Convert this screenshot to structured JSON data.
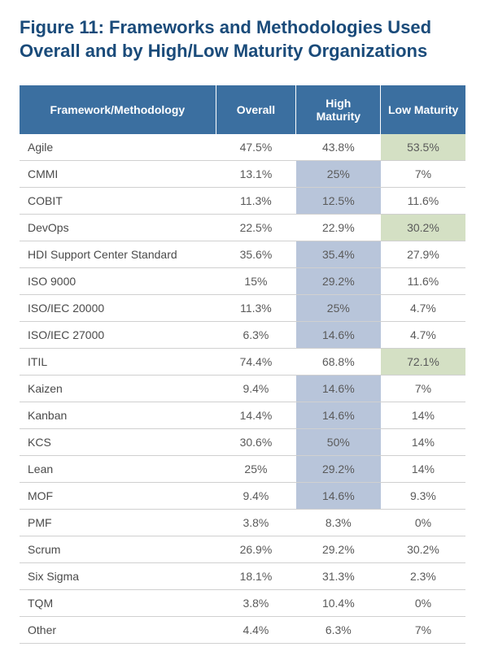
{
  "title": "Figure 11: Frameworks and Methodologies Used Overall and by High/Low Maturity Organizations",
  "table": {
    "type": "table",
    "header_bg": "#3b6fa0",
    "header_color": "#ffffff",
    "row_border_color": "#d0d0d0",
    "highlight_blue": "#b8c5da",
    "highlight_green": "#d4e0c4",
    "text_color": "#5a5a5a",
    "columns": [
      "Framework/Methodology",
      "Overall",
      "High Maturity",
      "Low Maturity"
    ],
    "rows": [
      {
        "name": "Agile",
        "overall": "47.5%",
        "high": "43.8%",
        "low": "53.5%",
        "hl": {
          "low": "green"
        }
      },
      {
        "name": "CMMI",
        "overall": "13.1%",
        "high": "25%",
        "low": "7%",
        "hl": {
          "high": "blue"
        }
      },
      {
        "name": "COBIT",
        "overall": "11.3%",
        "high": "12.5%",
        "low": "11.6%",
        "hl": {
          "high": "blue"
        }
      },
      {
        "name": "DevOps",
        "overall": "22.5%",
        "high": "22.9%",
        "low": "30.2%",
        "hl": {
          "low": "green"
        }
      },
      {
        "name": "HDI Support Center Standard",
        "overall": "35.6%",
        "high": "35.4%",
        "low": "27.9%",
        "hl": {
          "high": "blue"
        }
      },
      {
        "name": "ISO 9000",
        "overall": "15%",
        "high": "29.2%",
        "low": "11.6%",
        "hl": {
          "high": "blue"
        }
      },
      {
        "name": "ISO/IEC 20000",
        "overall": "11.3%",
        "high": "25%",
        "low": "4.7%",
        "hl": {
          "high": "blue"
        }
      },
      {
        "name": "ISO/IEC 27000",
        "overall": "6.3%",
        "high": "14.6%",
        "low": "4.7%",
        "hl": {
          "high": "blue"
        }
      },
      {
        "name": "ITIL",
        "overall": "74.4%",
        "high": "68.8%",
        "low": "72.1%",
        "hl": {
          "low": "green"
        }
      },
      {
        "name": "Kaizen",
        "overall": "9.4%",
        "high": "14.6%",
        "low": "7%",
        "hl": {
          "high": "blue"
        }
      },
      {
        "name": "Kanban",
        "overall": "14.4%",
        "high": "14.6%",
        "low": "14%",
        "hl": {
          "high": "blue"
        }
      },
      {
        "name": "KCS",
        "overall": "30.6%",
        "high": "50%",
        "low": "14%",
        "hl": {
          "high": "blue"
        }
      },
      {
        "name": "Lean",
        "overall": "25%",
        "high": "29.2%",
        "low": "14%",
        "hl": {
          "high": "blue"
        }
      },
      {
        "name": "MOF",
        "overall": "9.4%",
        "high": "14.6%",
        "low": "9.3%",
        "hl": {
          "high": "blue"
        }
      },
      {
        "name": "PMF",
        "overall": "3.8%",
        "high": "8.3%",
        "low": "0%",
        "hl": {}
      },
      {
        "name": "Scrum",
        "overall": "26.9%",
        "high": "29.2%",
        "low": "30.2%",
        "hl": {}
      },
      {
        "name": "Six Sigma",
        "overall": "18.1%",
        "high": "31.3%",
        "low": "2.3%",
        "hl": {}
      },
      {
        "name": "TQM",
        "overall": "3.8%",
        "high": "10.4%",
        "low": "0%",
        "hl": {}
      },
      {
        "name": "Other",
        "overall": "4.4%",
        "high": "6.3%",
        "low": "7%",
        "hl": {}
      }
    ]
  }
}
